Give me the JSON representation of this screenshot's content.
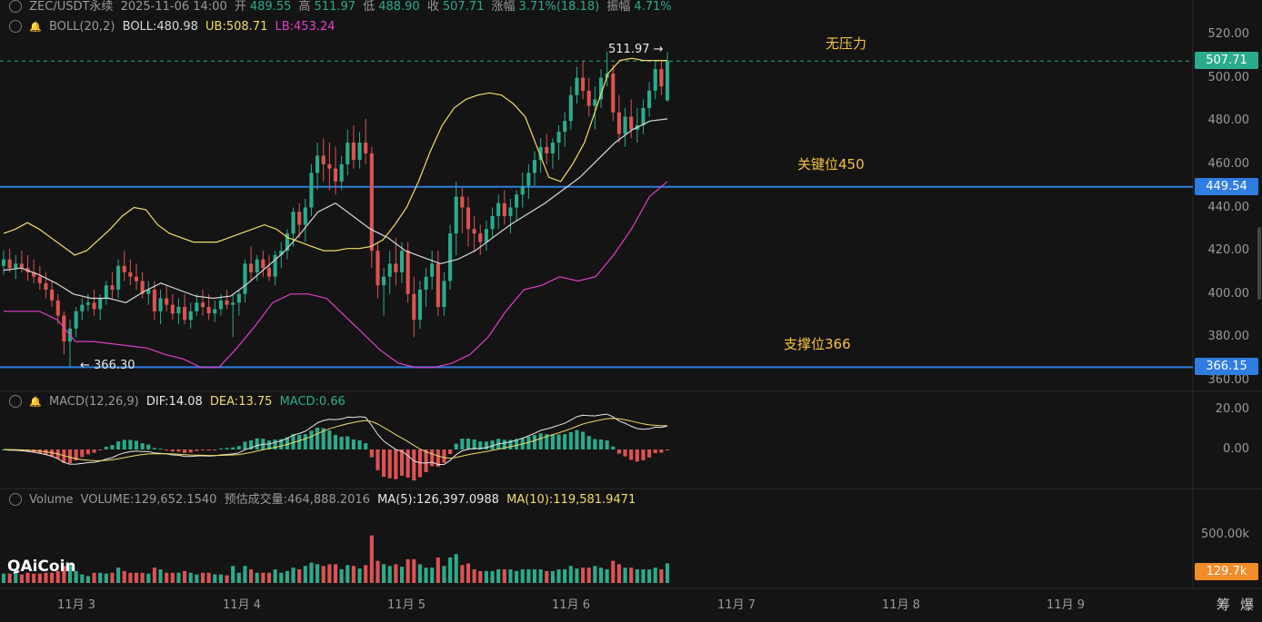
{
  "header": {
    "symbol": "ZEC/USDT永续",
    "time": "2025-11-06 14:00",
    "open_label": "开",
    "open": "489.55",
    "high_label": "高",
    "high": "511.97",
    "low_label": "低",
    "low": "488.90",
    "close_label": "收",
    "close": "507.71",
    "change_label": "涨幅",
    "change": "3.71%(18.18)",
    "amp_label": "振幅",
    "amp": "4.71%"
  },
  "boll": {
    "name": "BOLL(20,2)",
    "boll": "BOLL:480.98",
    "ub": "UB:508.71",
    "lb": "LB:453.24"
  },
  "macd": {
    "name": "MACD(12,26,9)",
    "dif": "DIF:14.08",
    "dea": "DEA:13.75",
    "macd": "MACD:0.66"
  },
  "volume": {
    "name": "Volume",
    "vol": "VOLUME:129,652.1540",
    "est": "预估成交量:464,888.2016",
    "ma5": "MA(5):126,397.0988",
    "ma10": "MA(10):119,581.9471"
  },
  "annotations": {
    "no_pressure": "无压力",
    "key_level": "关键位450",
    "support": "支撑位366",
    "high_marker": "511.97 →",
    "low_marker": "← 366.30"
  },
  "price_axis": [
    "520.00",
    "500.00",
    "480.00",
    "460.00",
    "440.00",
    "420.00",
    "400.00",
    "380.00",
    "360.00"
  ],
  "tags": {
    "last": "507.71",
    "key": "449.54",
    "support": "366.15",
    "vol": "129.7k"
  },
  "macd_axis": [
    "20.00",
    "0.00"
  ],
  "vol_axis": [
    "500.00k"
  ],
  "x_axis": [
    "11月 3",
    "11月 4",
    "11月 5",
    "11月 6",
    "11月 7",
    "11月 8",
    "11月 9"
  ],
  "bottom_buttons": [
    "筹",
    "爆"
  ],
  "logo": "AiCoin",
  "colors": {
    "up": "#2bab8b",
    "down": "#dd5353",
    "boll_upper": "#f2dd6b",
    "boll_mid": "#d9d9d9",
    "boll_lower": "#e040c8",
    "hline": "#2f7de0",
    "text": "#9a9a9a",
    "accent": "#f5c242"
  },
  "chart_data": {
    "type": "candlestick",
    "timeframe": "1h",
    "ylim": [
      356,
      528
    ],
    "x_dates": [
      "2025-11-03",
      "2025-11-04",
      "2025-11-05",
      "2025-11-06"
    ],
    "candles_ohlc": [
      [
        413,
        420,
        409,
        416
      ],
      [
        416,
        421,
        410,
        412
      ],
      [
        412,
        418,
        407,
        414
      ],
      [
        414,
        420,
        410,
        412
      ],
      [
        412,
        418,
        406,
        410
      ],
      [
        410,
        416,
        405,
        408
      ],
      [
        408,
        413,
        402,
        405
      ],
      [
        405,
        410,
        398,
        402
      ],
      [
        402,
        406,
        394,
        397
      ],
      [
        397,
        400,
        386,
        390
      ],
      [
        390,
        392,
        372,
        378
      ],
      [
        378,
        388,
        366,
        384
      ],
      [
        384,
        394,
        380,
        392
      ],
      [
        392,
        398,
        388,
        395
      ],
      [
        395,
        400,
        392,
        396
      ],
      [
        396,
        402,
        390,
        393
      ],
      [
        393,
        400,
        388,
        398
      ],
      [
        398,
        406,
        395,
        404
      ],
      [
        404,
        410,
        398,
        402
      ],
      [
        402,
        416,
        398,
        413
      ],
      [
        413,
        420,
        406,
        410
      ],
      [
        410,
        416,
        404,
        408
      ],
      [
        408,
        414,
        402,
        406
      ],
      [
        406,
        410,
        398,
        400
      ],
      [
        400,
        406,
        395,
        402
      ],
      [
        402,
        406,
        388,
        392
      ],
      [
        392,
        402,
        386,
        398
      ],
      [
        398,
        404,
        392,
        395
      ],
      [
        395,
        400,
        388,
        391
      ],
      [
        391,
        398,
        386,
        394
      ],
      [
        394,
        400,
        386,
        388
      ],
      [
        388,
        396,
        384,
        392
      ],
      [
        392,
        400,
        390,
        396
      ],
      [
        396,
        402,
        390,
        394
      ],
      [
        394,
        400,
        388,
        391
      ],
      [
        391,
        397,
        387,
        393
      ],
      [
        393,
        400,
        390,
        397
      ],
      [
        397,
        402,
        393,
        395
      ],
      [
        395,
        400,
        380,
        396
      ],
      [
        396,
        402,
        390,
        400
      ],
      [
        400,
        416,
        396,
        414
      ],
      [
        414,
        422,
        406,
        410
      ],
      [
        410,
        418,
        406,
        416
      ],
      [
        416,
        420,
        408,
        412
      ],
      [
        412,
        418,
        406,
        408
      ],
      [
        408,
        420,
        404,
        418
      ],
      [
        418,
        424,
        412,
        420
      ],
      [
        420,
        430,
        416,
        428
      ],
      [
        428,
        440,
        422,
        438
      ],
      [
        438,
        442,
        426,
        432
      ],
      [
        432,
        444,
        424,
        440
      ],
      [
        440,
        460,
        436,
        456
      ],
      [
        456,
        470,
        448,
        464
      ],
      [
        464,
        472,
        452,
        460
      ],
      [
        460,
        470,
        448,
        458
      ],
      [
        458,
        468,
        446,
        452
      ],
      [
        452,
        464,
        448,
        460
      ],
      [
        460,
        476,
        455,
        470
      ],
      [
        470,
        478,
        458,
        462
      ],
      [
        462,
        475,
        458,
        470
      ],
      [
        470,
        481,
        460,
        465
      ],
      [
        465,
        468,
        412,
        420
      ],
      [
        420,
        424,
        398,
        404
      ],
      [
        404,
        412,
        390,
        408
      ],
      [
        408,
        420,
        400,
        414
      ],
      [
        414,
        426,
        404,
        410
      ],
      [
        410,
        424,
        405,
        420
      ],
      [
        420,
        424,
        396,
        400
      ],
      [
        400,
        408,
        380,
        388
      ],
      [
        388,
        406,
        384,
        402
      ],
      [
        402,
        412,
        394,
        408
      ],
      [
        408,
        420,
        402,
        414
      ],
      [
        414,
        420,
        390,
        394
      ],
      [
        394,
        410,
        390,
        406
      ],
      [
        406,
        432,
        402,
        428
      ],
      [
        428,
        452,
        418,
        445
      ],
      [
        445,
        449,
        428,
        440
      ],
      [
        440,
        445,
        422,
        430
      ],
      [
        430,
        436,
        420,
        428
      ],
      [
        428,
        432,
        418,
        424
      ],
      [
        424,
        434,
        420,
        430
      ],
      [
        430,
        440,
        426,
        436
      ],
      [
        436,
        446,
        430,
        442
      ],
      [
        442,
        448,
        432,
        436
      ],
      [
        436,
        444,
        428,
        440
      ],
      [
        440,
        448,
        434,
        446
      ],
      [
        446,
        456,
        440,
        450
      ],
      [
        450,
        460,
        444,
        456
      ],
      [
        456,
        466,
        450,
        462
      ],
      [
        462,
        472,
        456,
        468
      ],
      [
        468,
        474,
        460,
        465
      ],
      [
        465,
        472,
        458,
        470
      ],
      [
        470,
        478,
        462,
        475
      ],
      [
        475,
        484,
        468,
        480
      ],
      [
        480,
        496,
        476,
        492
      ],
      [
        492,
        505,
        488,
        500
      ],
      [
        500,
        508,
        490,
        494
      ],
      [
        494,
        500,
        482,
        487
      ],
      [
        487,
        496,
        476,
        490
      ],
      [
        490,
        504,
        486,
        500
      ],
      [
        500,
        512,
        496,
        502
      ],
      [
        502,
        506,
        480,
        484
      ],
      [
        484,
        492,
        470,
        474
      ],
      [
        474,
        486,
        468,
        482
      ],
      [
        482,
        490,
        472,
        476
      ],
      [
        476,
        486,
        470,
        478
      ],
      [
        478,
        490,
        474,
        486
      ],
      [
        486,
        498,
        482,
        494
      ],
      [
        494,
        508,
        490,
        504
      ],
      [
        504,
        508,
        492,
        496
      ],
      [
        489.55,
        511.97,
        488.9,
        507.71
      ]
    ],
    "boll_upper": [
      428,
      430,
      433,
      430,
      426,
      422,
      418,
      420,
      425,
      430,
      436,
      440,
      439,
      432,
      428,
      426,
      424,
      424,
      424,
      426,
      428,
      430,
      432,
      430,
      426,
      424,
      422,
      420,
      420,
      421,
      421,
      422,
      425,
      432,
      440,
      452,
      466,
      478,
      486,
      490,
      492,
      493,
      492,
      488,
      482,
      468,
      454,
      452,
      460,
      470,
      486,
      502,
      508,
      509,
      508,
      508,
      508
    ],
    "boll_mid": [
      411,
      412,
      409,
      405,
      400,
      398,
      398,
      396,
      401,
      405,
      402,
      399,
      398,
      399,
      405,
      412,
      419,
      428,
      438,
      442,
      436,
      430,
      426,
      420,
      417,
      414,
      416,
      420,
      426,
      432,
      437,
      442,
      448,
      454,
      462,
      470,
      476,
      480,
      481
    ],
    "boll_lower": [
      392,
      392,
      392,
      388,
      378,
      378,
      377,
      376,
      375,
      372,
      370,
      366,
      366,
      375,
      385,
      396,
      400,
      400,
      398,
      390,
      382,
      374,
      368,
      366,
      366,
      368,
      372,
      380,
      392,
      402,
      404,
      408,
      406,
      408,
      418,
      430,
      445,
      452
    ],
    "macd": {
      "dif_last": 14.08,
      "dea_last": 13.75,
      "macd_last": 0.66,
      "ylim": [
        -10,
        22
      ]
    },
    "volume": {
      "last": 129652.154,
      "estimated": 464888.2016,
      "ma5": 126397.0988,
      "ma10": 119581.9471,
      "ylim": [
        0,
        600000
      ]
    },
    "hlines": [
      {
        "value": 507.71,
        "style": "dashed",
        "label": "无压力"
      },
      {
        "value": 449.54,
        "style": "solid",
        "label": "关键位450"
      },
      {
        "value": 366.15,
        "style": "solid",
        "label": "支撑位366"
      }
    ],
    "high": 511.97,
    "low": 366.3
  }
}
